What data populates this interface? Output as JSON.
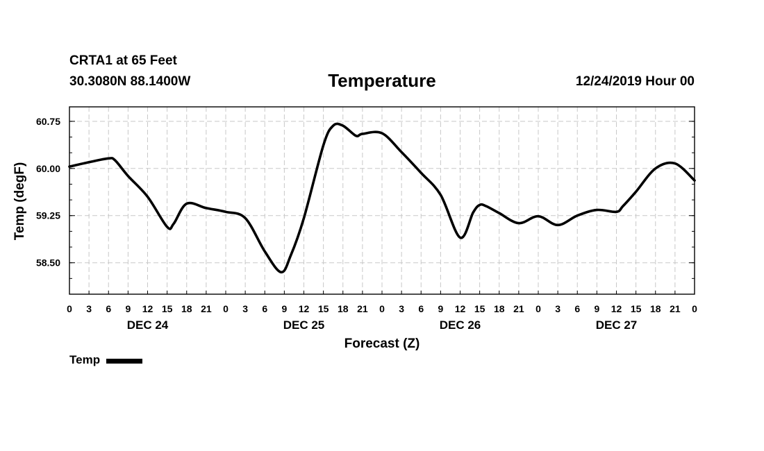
{
  "header": {
    "station": "CRTA1 at 65 Feet",
    "location": "30.3080N 88.1400W",
    "title": "Temperature",
    "datetime": "12/24/2019 Hour 00"
  },
  "chart_data": {
    "type": "line",
    "title": "Temperature",
    "xlabel": "Forecast (Z)",
    "ylabel": "Temp (degF)",
    "xlim": [
      0,
      96
    ],
    "ylim": [
      58.0,
      60.98
    ],
    "x_unit": "forecast hours from 12/24/2019 00Z",
    "x_ticks": [
      0,
      3,
      6,
      9,
      12,
      15,
      18,
      21,
      24,
      27,
      30,
      33,
      36,
      39,
      42,
      45,
      48,
      51,
      54,
      57,
      60,
      63,
      66,
      69,
      72,
      75,
      78,
      81,
      84,
      87,
      90,
      93,
      96
    ],
    "x_tick_labels": [
      "0",
      "3",
      "6",
      "9",
      "12",
      "15",
      "18",
      "21",
      "0",
      "3",
      "6",
      "9",
      "12",
      "15",
      "18",
      "21",
      "0",
      "3",
      "6",
      "9",
      "12",
      "15",
      "18",
      "21",
      "0",
      "3",
      "6",
      "9",
      "12",
      "15",
      "18",
      "21",
      "0"
    ],
    "day_labels": [
      {
        "at": 12,
        "label": "DEC 24"
      },
      {
        "at": 36,
        "label": "DEC 25"
      },
      {
        "at": 60,
        "label": "DEC 26"
      },
      {
        "at": 84,
        "label": "DEC 27"
      }
    ],
    "y_ticks": [
      58.5,
      59.25,
      60.0,
      60.75
    ],
    "y_tick_labels": [
      "58.50",
      "59.25",
      "60.00",
      "60.75"
    ],
    "grid": true,
    "legend": {
      "position": "bottom-left",
      "label": "Temp"
    },
    "series": [
      {
        "name": "Temp",
        "color": "#000000",
        "x": [
          0,
          3,
          6,
          7,
          9,
          12,
          15,
          16,
          18,
          21,
          24,
          27,
          30,
          32.5,
          34,
          36,
          39,
          40.5,
          42,
          44,
          45,
          48,
          51,
          54,
          57,
          60,
          62,
          63,
          64,
          66,
          69,
          72,
          75,
          78,
          81,
          84,
          85,
          87,
          90,
          93,
          96
        ],
        "y": [
          60.03,
          60.1,
          60.16,
          60.13,
          59.88,
          59.55,
          59.07,
          59.12,
          59.44,
          59.37,
          59.31,
          59.21,
          58.68,
          58.35,
          58.62,
          59.21,
          60.37,
          60.68,
          60.68,
          60.52,
          60.55,
          60.56,
          60.26,
          59.93,
          59.58,
          58.9,
          59.3,
          59.42,
          59.4,
          59.29,
          59.13,
          59.24,
          59.1,
          59.25,
          59.34,
          59.31,
          59.4,
          59.63,
          60.0,
          60.08,
          59.81
        ]
      }
    ]
  }
}
